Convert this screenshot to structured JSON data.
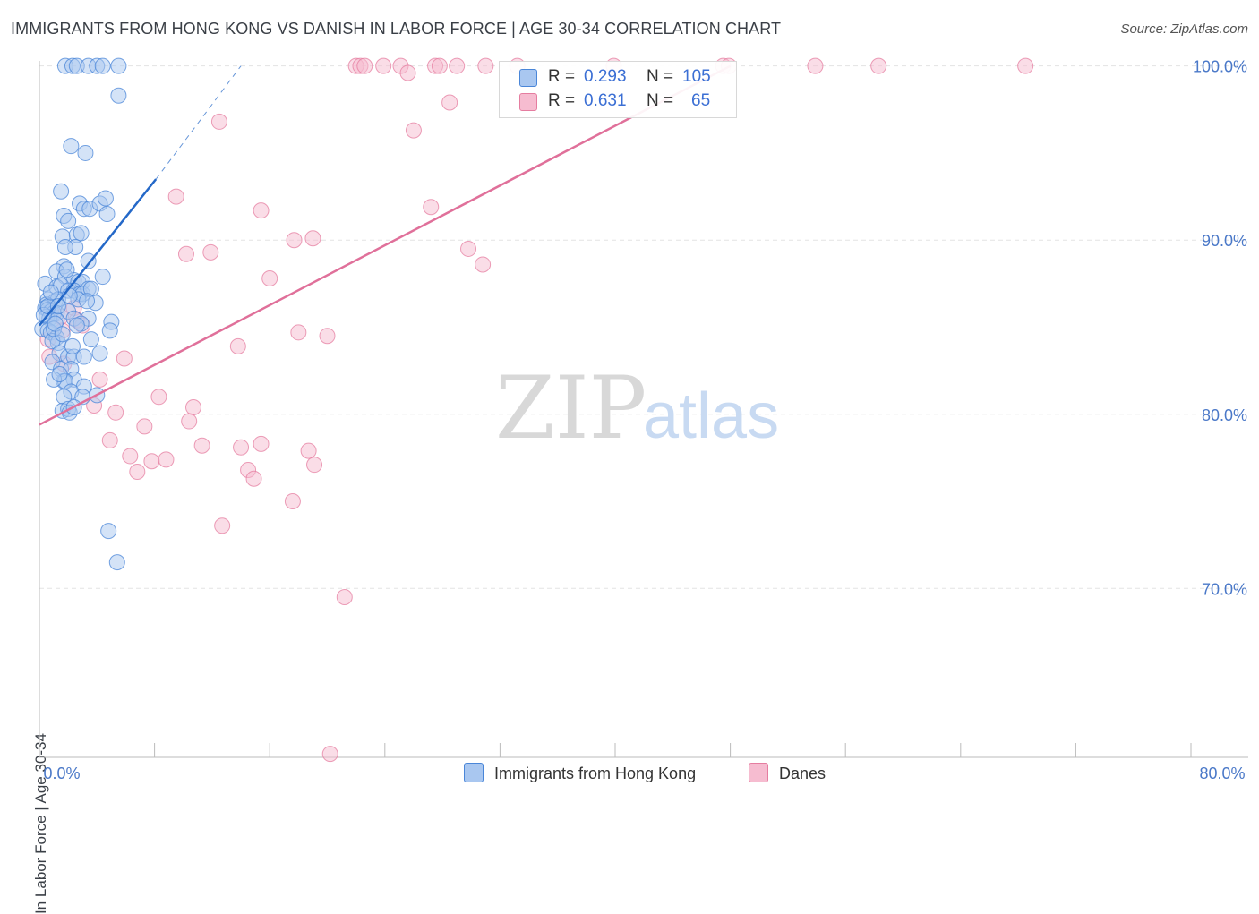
{
  "header": {
    "title": "IMMIGRANTS FROM HONG KONG VS DANISH IN LABOR FORCE | AGE 30-34 CORRELATION CHART",
    "source": "Source: ZipAtlas.com"
  },
  "watermark": {
    "zip": "ZIP",
    "atlas": "atlas"
  },
  "legend": {
    "rows": [
      {
        "r_label": "R =",
        "r_value": "0.293",
        "n_label": "N =",
        "n_value": "105"
      },
      {
        "r_label": "R =",
        "r_value": "0.631",
        "n_label": "N =",
        "n_value": "65"
      }
    ]
  },
  "bottom_legend": {
    "series1": "Immigrants from Hong Kong",
    "series2": "Danes"
  },
  "colors": {
    "blue_fill": "#a9c7f0",
    "blue_stroke": "#4a86d8",
    "blue_line": "#2468c8",
    "pink_fill": "#f6bcd0",
    "pink_stroke": "#e57da0",
    "pink_line": "#e0709a",
    "tick_text": "#4a78c8",
    "grid": "#e3e3e3"
  },
  "chart_data": {
    "type": "scatter",
    "xlabel": "",
    "ylabel": "In Labor Force | Age 30-34",
    "xlim": [
      0,
      80
    ],
    "ylim": [
      60.3,
      100.6
    ],
    "x_tick_labels": [
      {
        "value": 0,
        "label": "0.0%"
      },
      {
        "value": 80,
        "label": "80.0%"
      }
    ],
    "y_tick_labels": [
      {
        "value": 100,
        "label": "100.0%"
      },
      {
        "value": 90,
        "label": "90.0%"
      },
      {
        "value": 80,
        "label": "80.0%"
      },
      {
        "value": 70,
        "label": "70.0%"
      }
    ],
    "grid": true,
    "legend_position": "top-center",
    "series": [
      {
        "name": "Immigrants from Hong Kong",
        "trend": {
          "x": [
            0.0,
            8.1
          ],
          "y": [
            85.1,
            93.5
          ],
          "dashed_to": {
            "x": 14.0,
            "y": 100.0
          }
        },
        "points": [
          [
            1.8,
            100
          ],
          [
            2.3,
            100
          ],
          [
            2.6,
            100
          ],
          [
            3.4,
            100
          ],
          [
            4.0,
            100
          ],
          [
            4.4,
            100
          ],
          [
            5.5,
            100
          ],
          [
            5.5,
            98.3
          ],
          [
            2.2,
            95.4
          ],
          [
            3.2,
            95.0
          ],
          [
            1.5,
            92.8
          ],
          [
            2.8,
            92.1
          ],
          [
            3.1,
            91.8
          ],
          [
            3.5,
            91.8
          ],
          [
            4.2,
            92.1
          ],
          [
            4.6,
            92.4
          ],
          [
            4.7,
            91.5
          ],
          [
            1.7,
            91.4
          ],
          [
            2.0,
            91.1
          ],
          [
            1.6,
            90.2
          ],
          [
            2.6,
            90.3
          ],
          [
            2.9,
            90.4
          ],
          [
            2.5,
            89.6
          ],
          [
            1.8,
            89.6
          ],
          [
            3.4,
            88.8
          ],
          [
            1.7,
            88.5
          ],
          [
            1.2,
            88.2
          ],
          [
            1.8,
            87.9
          ],
          [
            2.4,
            87.7
          ],
          [
            2.7,
            87.6
          ],
          [
            3.0,
            87.6
          ],
          [
            4.4,
            87.9
          ],
          [
            0.4,
            87.5
          ],
          [
            1.2,
            87.3
          ],
          [
            1.5,
            87.4
          ],
          [
            2.0,
            87.1
          ],
          [
            2.4,
            87.1
          ],
          [
            2.8,
            86.9
          ],
          [
            3.0,
            86.9
          ],
          [
            3.4,
            87.2
          ],
          [
            3.6,
            87.2
          ],
          [
            0.6,
            86.6
          ],
          [
            1.1,
            86.5
          ],
          [
            1.3,
            86.6
          ],
          [
            2.7,
            86.6
          ],
          [
            3.9,
            86.4
          ],
          [
            0.5,
            86.3
          ],
          [
            0.4,
            86.1
          ],
          [
            0.6,
            86.0
          ],
          [
            0.8,
            85.9
          ],
          [
            1.0,
            85.8
          ],
          [
            1.2,
            85.8
          ],
          [
            2.0,
            85.9
          ],
          [
            2.4,
            85.5
          ],
          [
            0.5,
            85.6
          ],
          [
            0.7,
            85.5
          ],
          [
            1.2,
            85.4
          ],
          [
            3.4,
            85.5
          ],
          [
            5.0,
            85.3
          ],
          [
            2.9,
            85.2
          ],
          [
            0.2,
            84.9
          ],
          [
            0.6,
            84.8
          ],
          [
            0.8,
            84.7
          ],
          [
            4.9,
            84.8
          ],
          [
            1.2,
            84.4
          ],
          [
            1.3,
            84.1
          ],
          [
            0.9,
            84.2
          ],
          [
            3.6,
            84.3
          ],
          [
            1.4,
            83.5
          ],
          [
            2.0,
            83.3
          ],
          [
            2.4,
            83.3
          ],
          [
            3.1,
            83.3
          ],
          [
            4.2,
            83.5
          ],
          [
            0.9,
            83.0
          ],
          [
            1.5,
            82.6
          ],
          [
            2.2,
            82.6
          ],
          [
            2.4,
            82.0
          ],
          [
            1.7,
            81.9
          ],
          [
            1.8,
            81.9
          ],
          [
            1.0,
            82.0
          ],
          [
            3.1,
            81.6
          ],
          [
            2.2,
            81.3
          ],
          [
            1.7,
            81.0
          ],
          [
            3.0,
            81.0
          ],
          [
            4.0,
            81.1
          ],
          [
            1.6,
            80.2
          ],
          [
            2.0,
            80.3
          ],
          [
            2.1,
            80.1
          ],
          [
            2.4,
            80.4
          ],
          [
            4.8,
            73.3
          ],
          [
            5.4,
            71.5
          ],
          [
            0.3,
            85.7
          ],
          [
            0.6,
            86.2
          ],
          [
            1.0,
            84.9
          ],
          [
            1.3,
            86.2
          ],
          [
            2.1,
            86.8
          ],
          [
            2.6,
            85.1
          ],
          [
            1.9,
            88.3
          ],
          [
            3.3,
            86.5
          ],
          [
            0.8,
            87.0
          ],
          [
            1.1,
            85.2
          ],
          [
            1.6,
            84.6
          ],
          [
            2.3,
            83.9
          ],
          [
            1.4,
            82.3
          ]
        ]
      },
      {
        "name": "Danes",
        "trend": {
          "x": [
            0.0,
            48.0
          ],
          "y": [
            79.4,
            100.0
          ]
        },
        "points": [
          [
            22.0,
            100
          ],
          [
            22.3,
            100
          ],
          [
            22.6,
            100
          ],
          [
            23.9,
            100
          ],
          [
            25.1,
            100
          ],
          [
            27.5,
            100
          ],
          [
            27.8,
            100
          ],
          [
            29.0,
            100
          ],
          [
            31.0,
            100
          ],
          [
            33.2,
            100
          ],
          [
            39.9,
            100
          ],
          [
            47.5,
            100
          ],
          [
            47.9,
            100
          ],
          [
            53.9,
            100
          ],
          [
            58.3,
            100
          ],
          [
            68.5,
            100
          ],
          [
            25.6,
            99.6
          ],
          [
            28.5,
            97.9
          ],
          [
            12.5,
            96.8
          ],
          [
            26.0,
            96.3
          ],
          [
            9.5,
            92.5
          ],
          [
            15.4,
            91.7
          ],
          [
            27.2,
            91.9
          ],
          [
            17.7,
            90.0
          ],
          [
            19.0,
            90.1
          ],
          [
            29.8,
            89.5
          ],
          [
            10.2,
            89.2
          ],
          [
            11.9,
            89.3
          ],
          [
            16.0,
            87.8
          ],
          [
            30.8,
            88.6
          ],
          [
            2.4,
            86.1
          ],
          [
            1.5,
            85.6
          ],
          [
            2.6,
            85.4
          ],
          [
            3.0,
            85.1
          ],
          [
            18.0,
            84.7
          ],
          [
            20.0,
            84.5
          ],
          [
            0.6,
            84.3
          ],
          [
            1.6,
            84.8
          ],
          [
            13.8,
            83.9
          ],
          [
            0.7,
            83.3
          ],
          [
            5.9,
            83.2
          ],
          [
            1.7,
            82.9
          ],
          [
            4.2,
            82.0
          ],
          [
            8.3,
            81.0
          ],
          [
            3.8,
            80.5
          ],
          [
            10.7,
            80.4
          ],
          [
            5.3,
            80.1
          ],
          [
            10.4,
            79.6
          ],
          [
            7.3,
            79.3
          ],
          [
            4.9,
            78.5
          ],
          [
            11.3,
            78.2
          ],
          [
            15.4,
            78.3
          ],
          [
            14.0,
            78.1
          ],
          [
            18.7,
            77.9
          ],
          [
            6.3,
            77.6
          ],
          [
            7.8,
            77.3
          ],
          [
            8.8,
            77.4
          ],
          [
            19.1,
            77.1
          ],
          [
            6.8,
            76.7
          ],
          [
            14.5,
            76.8
          ],
          [
            14.9,
            76.3
          ],
          [
            17.6,
            75.0
          ],
          [
            12.7,
            73.6
          ],
          [
            21.2,
            69.5
          ],
          [
            20.2,
            60.5
          ]
        ]
      }
    ]
  }
}
